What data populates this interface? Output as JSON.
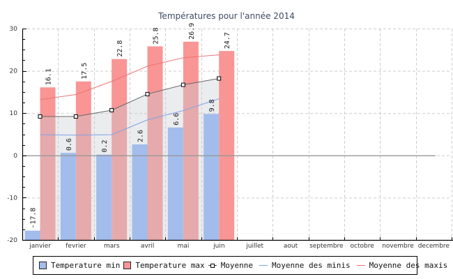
{
  "chart_data": {
    "type": "bar",
    "title": "Températures pour l'année 2014",
    "xlabel": "",
    "ylabel": "",
    "ylim": [
      -20,
      30
    ],
    "yticks": [
      -20,
      -10,
      0,
      10,
      20,
      30
    ],
    "ytick_labels": [
      "-20",
      "-10",
      "0",
      "10",
      "20",
      "30"
    ],
    "grid": true,
    "legend_position": "bottom",
    "categories": [
      "janvier",
      "fevrier",
      "mars",
      "avril",
      "mai",
      "juin",
      "juillet",
      "aout",
      "septembre",
      "octobre",
      "novembre",
      "decembre"
    ],
    "series": [
      {
        "name": "Temperature min",
        "kind": "bar",
        "color": "#a2bdec",
        "values": [
          -17.8,
          0.6,
          0.2,
          2.6,
          6.6,
          9.8,
          null,
          null,
          null,
          null,
          null,
          null
        ],
        "labels": [
          "-17.8",
          "0.6",
          "0.2",
          "2.6",
          "6.6",
          "9.8"
        ]
      },
      {
        "name": "Temperature max",
        "kind": "bar",
        "color": "#f99595",
        "values": [
          16.1,
          17.5,
          22.8,
          25.8,
          26.9,
          24.7,
          null,
          null,
          null,
          null,
          null,
          null
        ],
        "labels": [
          "16.1",
          "17.5",
          "22.8",
          "25.8",
          "26.9",
          "24.7"
        ]
      },
      {
        "name": "Moyenne",
        "kind": "line-area",
        "color": "#666666",
        "values": [
          9.2,
          9.2,
          10.7,
          14.5,
          16.7,
          18.2,
          null,
          null,
          null,
          null,
          null,
          null
        ]
      },
      {
        "name": "Moyenne des minis",
        "kind": "line",
        "color": "#7ea2e6",
        "values": [
          4.9,
          4.8,
          4.9,
          8.4,
          10.6,
          13.4,
          null,
          null,
          null,
          null,
          null,
          null
        ]
      },
      {
        "name": "Moyenne des maxis",
        "kind": "line",
        "color": "#f07070",
        "values": [
          13.2,
          14.4,
          17.5,
          21.1,
          23.1,
          23.8,
          null,
          null,
          null,
          null,
          null,
          null
        ]
      }
    ]
  },
  "legend": {
    "items": [
      {
        "label": "Temperature min"
      },
      {
        "label": "Temperature max"
      },
      {
        "label": "Moyenne"
      },
      {
        "label": "Moyenne des minis"
      },
      {
        "label": "Moyenne des maxis"
      }
    ]
  }
}
